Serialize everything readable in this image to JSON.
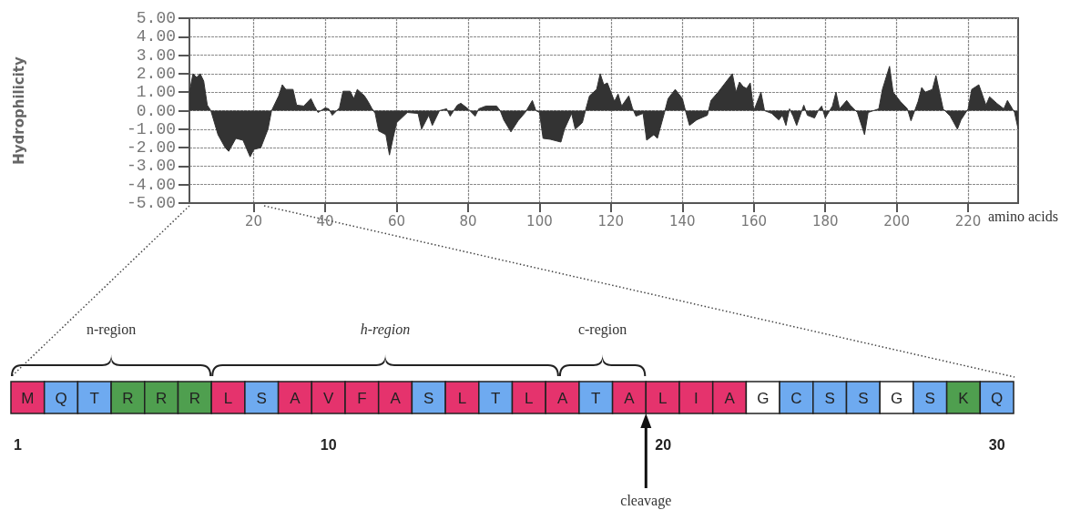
{
  "chart_data": [
    {
      "type": "area",
      "ylabel": "Hydrophilicity",
      "xlabel": "amino acids",
      "color": "#333333",
      "marker": "none",
      "grid": true,
      "xlim": [
        2,
        234
      ],
      "xticks": [
        20,
        40,
        60,
        80,
        100,
        120,
        140,
        160,
        180,
        200,
        220
      ],
      "ylim": [
        -5,
        5
      ],
      "yticks": [
        {
          "value": 5,
          "label": "5.00"
        },
        {
          "value": 4,
          "label": "4.00"
        },
        {
          "value": 3,
          "label": "3.00"
        },
        {
          "value": 2,
          "label": "2.00"
        },
        {
          "value": 1,
          "label": "1.00"
        },
        {
          "value": 0,
          "label": "0.00"
        },
        {
          "value": -1,
          "label": "-1.00"
        },
        {
          "value": -2,
          "label": "-2.00"
        },
        {
          "value": -3,
          "label": "-3.00"
        },
        {
          "value": -4,
          "label": "-4.00"
        },
        {
          "value": -5,
          "label": "-5.00"
        }
      ],
      "x": [
        2,
        3,
        4,
        5,
        6,
        7,
        8,
        10,
        12,
        13,
        15,
        17,
        19,
        20,
        22,
        24,
        25,
        27,
        28,
        29,
        31,
        32,
        34,
        36,
        37,
        38,
        40,
        41,
        42,
        44,
        45,
        47,
        48,
        49,
        51,
        52,
        53,
        54,
        55,
        57,
        58,
        59,
        60,
        63,
        66,
        67,
        69,
        70,
        72,
        74,
        75,
        77,
        78,
        80,
        82,
        83,
        85,
        88,
        89,
        90,
        92,
        94,
        96,
        98,
        99,
        100,
        101,
        103,
        106,
        107,
        109,
        110,
        112,
        113,
        114,
        116,
        117,
        118,
        119,
        121,
        122,
        123,
        125,
        126,
        127,
        129,
        130,
        132,
        133,
        135,
        136,
        138,
        140,
        141,
        142,
        144,
        147,
        148,
        150,
        152,
        154,
        155,
        156,
        157,
        158,
        159,
        160,
        162,
        163,
        165,
        167,
        168,
        169,
        170,
        171,
        172,
        174,
        175,
        177,
        178,
        179,
        180,
        182,
        183,
        184,
        186,
        187,
        189,
        191,
        192,
        195,
        196,
        198,
        199,
        201,
        203,
        204,
        206,
        207,
        208,
        210,
        211,
        212,
        213,
        215,
        217,
        218,
        220,
        221,
        223,
        225,
        226,
        228,
        230,
        231,
        233,
        234
      ],
      "values": [
        1.0,
        2.0,
        1.8,
        2.0,
        1.6,
        0.3,
        0,
        -1.3,
        -2.0,
        -2.2,
        -1.5,
        -1.6,
        -2.5,
        -2.1,
        -2.0,
        -1.0,
        0,
        0.8,
        1.4,
        1.15,
        1.15,
        0.3,
        0.25,
        0.65,
        0.25,
        -0.1,
        0.15,
        0.1,
        -0.25,
        0.15,
        1.05,
        1.05,
        0.65,
        1.15,
        0.8,
        0.5,
        0.15,
        -0.15,
        -1.1,
        -1.3,
        -2.4,
        -1.5,
        -0.65,
        -0.1,
        -0.15,
        -1.0,
        -0.25,
        -0.8,
        0,
        0.1,
        -0.3,
        0.3,
        0.4,
        0.1,
        -0.3,
        0.1,
        0.25,
        0.25,
        0,
        -0.5,
        -1.15,
        -0.55,
        -0.1,
        0.55,
        0,
        -0.1,
        -1.5,
        -1.55,
        -1.7,
        -1.0,
        -0.15,
        -1.0,
        -0.65,
        0.1,
        0.8,
        1.15,
        2.0,
        1.4,
        1.5,
        0.5,
        0.9,
        0.25,
        0.8,
        0.15,
        -0.3,
        -0.15,
        -1.6,
        -1.3,
        -1.5,
        -0.1,
        0.65,
        1.15,
        0.65,
        -0.1,
        -0.8,
        -0.5,
        -0.25,
        0.55,
        1.0,
        1.5,
        2.0,
        1.0,
        1.55,
        1.3,
        1.2,
        1.5,
        0,
        1.0,
        0,
        -0.15,
        -0.5,
        -0.25,
        -0.8,
        0.1,
        -0.3,
        -0.8,
        0.3,
        -0.25,
        -0.4,
        0,
        0.25,
        -0.4,
        0.25,
        1.0,
        0.1,
        0.55,
        0.3,
        -0.1,
        -1.3,
        -0.1,
        0.1,
        1.15,
        2.4,
        1.0,
        0.5,
        0.1,
        -0.55,
        0.5,
        1.25,
        1.0,
        1.15,
        1.9,
        1.0,
        0.1,
        -0.3,
        -1.0,
        -0.5,
        0.1,
        1.15,
        1.4,
        0.3,
        0.75,
        0.4,
        0.1,
        0.55,
        -0.1,
        -1.0
      ]
    },
    {
      "type": "other",
      "categories": [
        "M",
        "Q",
        "T",
        "R",
        "R",
        "R",
        "L",
        "S",
        "A",
        "V",
        "F",
        "A",
        "S",
        "L",
        "T",
        "L",
        "A",
        "T",
        "A",
        "L",
        "I",
        "A",
        "G",
        "C",
        "S",
        "S",
        "G",
        "S",
        "K",
        "Q"
      ],
      "colors": [
        "#e5336d",
        "#6eaaf0",
        "#6eaaf0",
        "#4f9f4f",
        "#4f9f4f",
        "#4f9f4f",
        "#e5336d",
        "#6eaaf0",
        "#e5336d",
        "#e5336d",
        "#e5336d",
        "#e5336d",
        "#6eaaf0",
        "#e5336d",
        "#6eaaf0",
        "#e5336d",
        "#e5336d",
        "#6eaaf0",
        "#e5336d",
        "#e5336d",
        "#e5336d",
        "#e5336d",
        "#ffffff",
        "#6eaaf0",
        "#6eaaf0",
        "#6eaaf0",
        "#ffffff",
        "#6eaaf0",
        "#4f9f4f",
        "#6eaaf0"
      ],
      "annotations": [
        "n-region",
        "h-region",
        "c-region",
        "cleavage",
        "1",
        "10",
        "20",
        "30"
      ]
    }
  ]
}
